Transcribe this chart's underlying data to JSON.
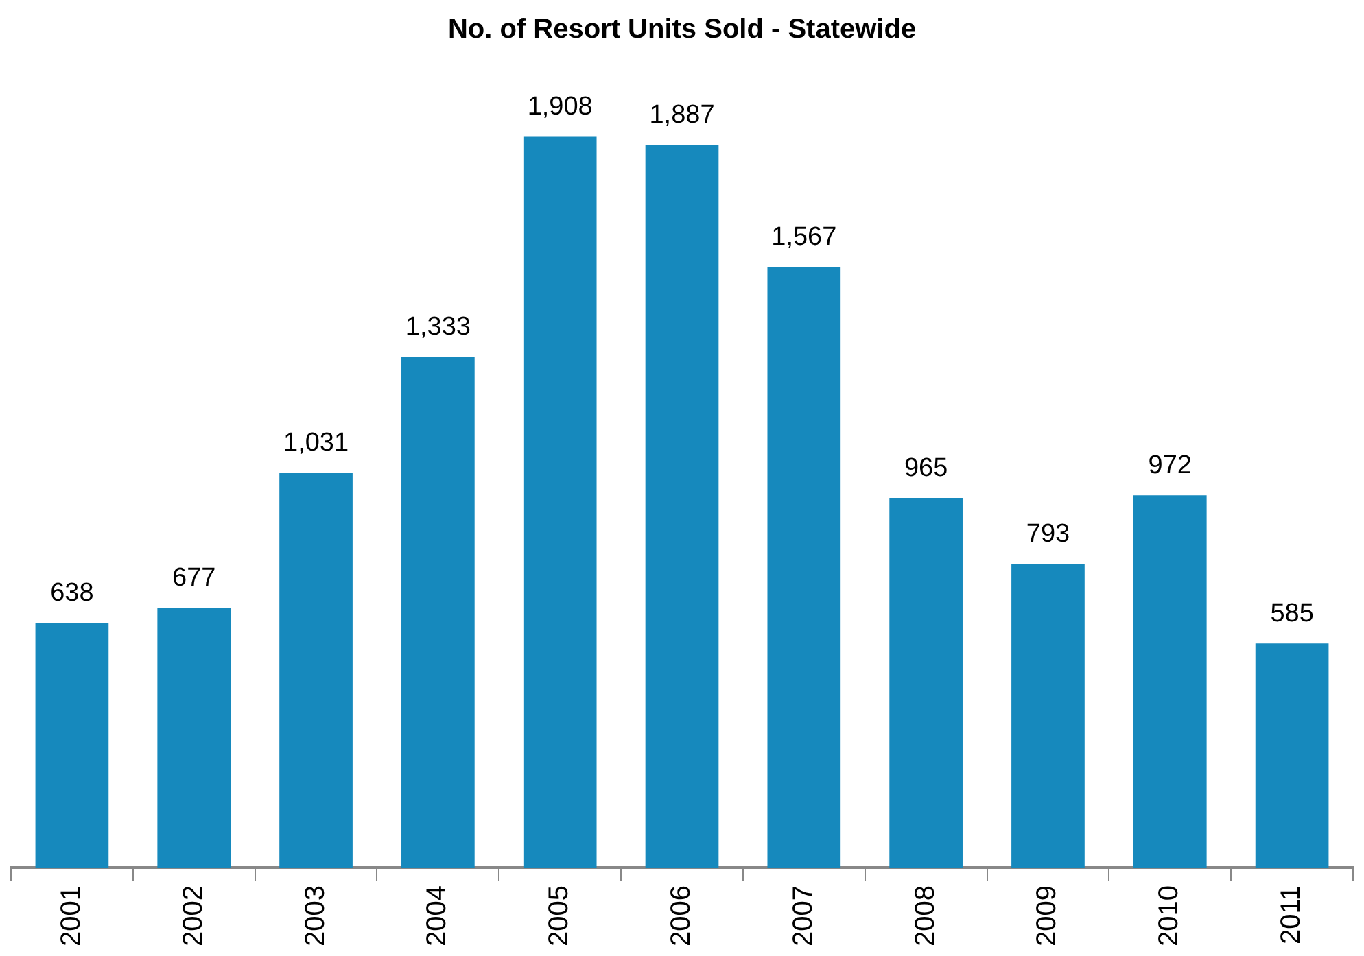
{
  "chart_data": {
    "type": "bar",
    "title": "No. of Resort Units Sold - Statewide",
    "categories": [
      "2001",
      "2002",
      "2003",
      "2004",
      "2005",
      "2006",
      "2007",
      "2008",
      "2009",
      "2010",
      "2011"
    ],
    "values": [
      638,
      677,
      1031,
      1333,
      1908,
      1887,
      1567,
      965,
      793,
      972,
      585
    ],
    "value_labels": [
      "638",
      "677",
      "1,031",
      "1,333",
      "1,908",
      "1,887",
      "1,567",
      "965",
      "793",
      "972",
      "585"
    ],
    "color": "#1689bd"
  }
}
